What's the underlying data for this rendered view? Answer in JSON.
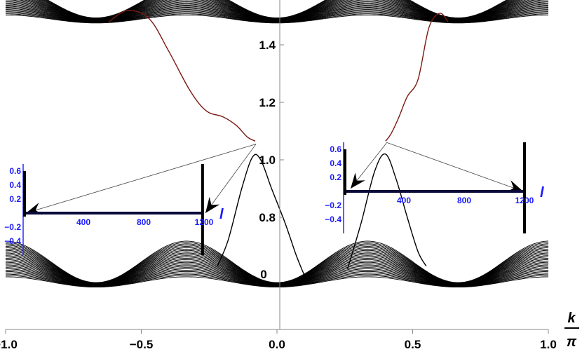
{
  "chart_data": [
    {
      "type": "line",
      "title": "",
      "xlabel": "k/π",
      "xlabel_num": "k",
      "xlabel_den": "π",
      "ylabel": "",
      "xlim": [
        -1.0,
        1.0
      ],
      "ylim": [
        0.55,
        1.65
      ],
      "x_ticks": [
        "-1.0",
        "-0.5",
        "0.0",
        "0.5",
        "1.0"
      ],
      "y_ticks": [
        "0.8",
        "1.0",
        "1.2",
        "1.4"
      ],
      "y_tick_values": [
        0.8,
        1.0,
        1.2,
        1.4
      ],
      "partial_tick_labels": [
        "0"
      ],
      "colors": {
        "bands": "#000000",
        "edge_state": "#7a1a12",
        "edge_state_lower": "#000000"
      },
      "bands": {
        "upper": {
          "center": 1.52,
          "amplitude": 0.035,
          "thickness": 0.06,
          "period": 0.667,
          "lines": 28
        },
        "lower": {
          "center": 0.61,
          "amplitude": 0.045,
          "thickness": 0.07,
          "period": 0.667,
          "lines": 28
        }
      },
      "series": [
        {
          "kind": "upper-edge-state",
          "x": [
            -0.62,
            -0.55,
            -0.47,
            -0.4,
            -0.32,
            -0.26,
            -0.2,
            -0.15,
            -0.11,
            -0.08
          ],
          "y": [
            1.48,
            1.52,
            1.49,
            1.38,
            1.24,
            1.17,
            1.15,
            1.12,
            1.08,
            1.065
          ]
        },
        {
          "kind": "upper-edge-state",
          "x": [
            0.63,
            0.6,
            0.56,
            0.52,
            0.48,
            0.45,
            0.42,
            0.4
          ],
          "y": [
            1.48,
            1.51,
            1.46,
            1.28,
            1.22,
            1.15,
            1.09,
            1.065
          ]
        },
        {
          "kind": "lower-edge-state",
          "x": [
            -0.22,
            -0.18,
            -0.13,
            -0.09,
            -0.06,
            -0.02,
            0.03,
            0.07,
            0.1
          ],
          "y": [
            0.63,
            0.72,
            0.9,
            1.01,
            1.0,
            0.9,
            0.78,
            0.67,
            0.6
          ]
        },
        {
          "kind": "lower-edge-state",
          "x": [
            0.26,
            0.31,
            0.36,
            0.4,
            0.44,
            0.48,
            0.52,
            0.55
          ],
          "y": [
            0.62,
            0.78,
            0.96,
            1.02,
            0.93,
            0.8,
            0.68,
            0.63
          ]
        }
      ],
      "annotation_sources": [
        {
          "x": -0.077,
          "y": 1.055
        },
        {
          "x": 0.405,
          "y": 1.06
        }
      ]
    },
    {
      "type": "line",
      "title": "",
      "xlabel": "l",
      "ylabel": "",
      "xlim": [
        0,
        1250
      ],
      "ylim": [
        -0.5,
        0.7
      ],
      "x_ticks": [
        "400",
        "800",
        "1200"
      ],
      "y_ticks": [
        "0.6",
        "0.4",
        "0.2",
        "-0.2",
        "-0.4"
      ],
      "colors": {
        "axis_text": "#1a1aff",
        "profile": "#0a0a3a"
      },
      "spike_positions": [
        1190
      ]
    },
    {
      "type": "line",
      "title": "",
      "xlabel": "l",
      "ylabel": "",
      "xlim": [
        0,
        1250
      ],
      "ylim": [
        -0.5,
        0.7
      ],
      "x_ticks": [
        "400",
        "800",
        "1200"
      ],
      "y_ticks": [
        "0.6",
        "0.4",
        "0.2",
        "-0.2",
        "-0.4"
      ],
      "colors": {
        "axis_text": "#1a1aff",
        "profile": "#0a0a3a"
      },
      "spike_positions": [
        1200
      ]
    }
  ]
}
